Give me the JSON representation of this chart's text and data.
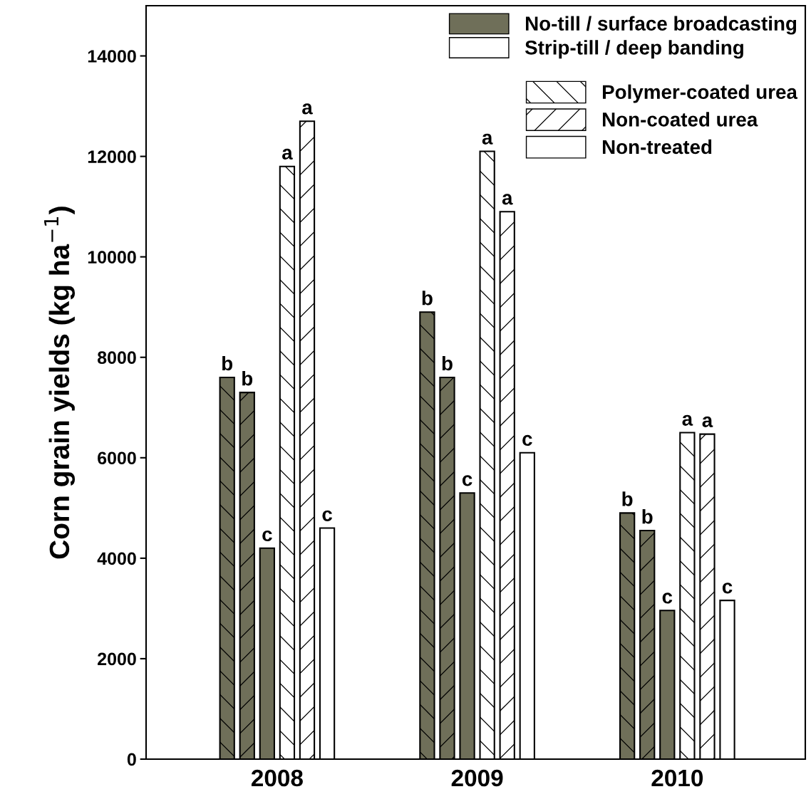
{
  "chart_data": {
    "type": "bar",
    "ylabel": "Corn grain yields (kg ha$^{−1}$)",
    "categories": [
      "2008",
      "2009",
      "2010"
    ],
    "series": [
      {
        "color": "#6f6f59",
        "values": [
          7600,
          8900,
          4900
        ],
        "value_labels": [
          "b",
          "b",
          "b"
        ]
      },
      {
        "color": "#6f6f59",
        "values": [
          7300,
          7600,
          4550
        ],
        "value_labels": [
          "b",
          "b",
          "b"
        ]
      },
      {
        "color": "#6f6f59",
        "values": [
          4200,
          5300,
          2960
        ],
        "value_labels": [
          "c",
          "c",
          "c"
        ]
      },
      {
        "color": "#ffffff",
        "values": [
          11800,
          12100,
          6500
        ],
        "value_labels": [
          "a",
          "a",
          "a"
        ]
      },
      {
        "color": "#ffffff",
        "values": [
          12700,
          10900,
          6470
        ],
        "value_labels": [
          "a",
          "a",
          "a"
        ]
      },
      {
        "color": "#ffffff",
        "values": [
          4600,
          6100,
          3160
        ],
        "value_labels": [
          "c",
          "c",
          "c"
        ]
      }
    ],
    "annotations": [
      "No-till / surface broadcasting",
      "Strip-till / deep banding",
      "Polymer-coated urea",
      "Non-coated urea",
      "Non-treated"
    ],
    "ylim": [
      0,
      15000
    ],
    "yticks": [
      0,
      2000,
      4000,
      6000,
      8000,
      10000,
      12000,
      14000
    ],
    "grid": false
  }
}
